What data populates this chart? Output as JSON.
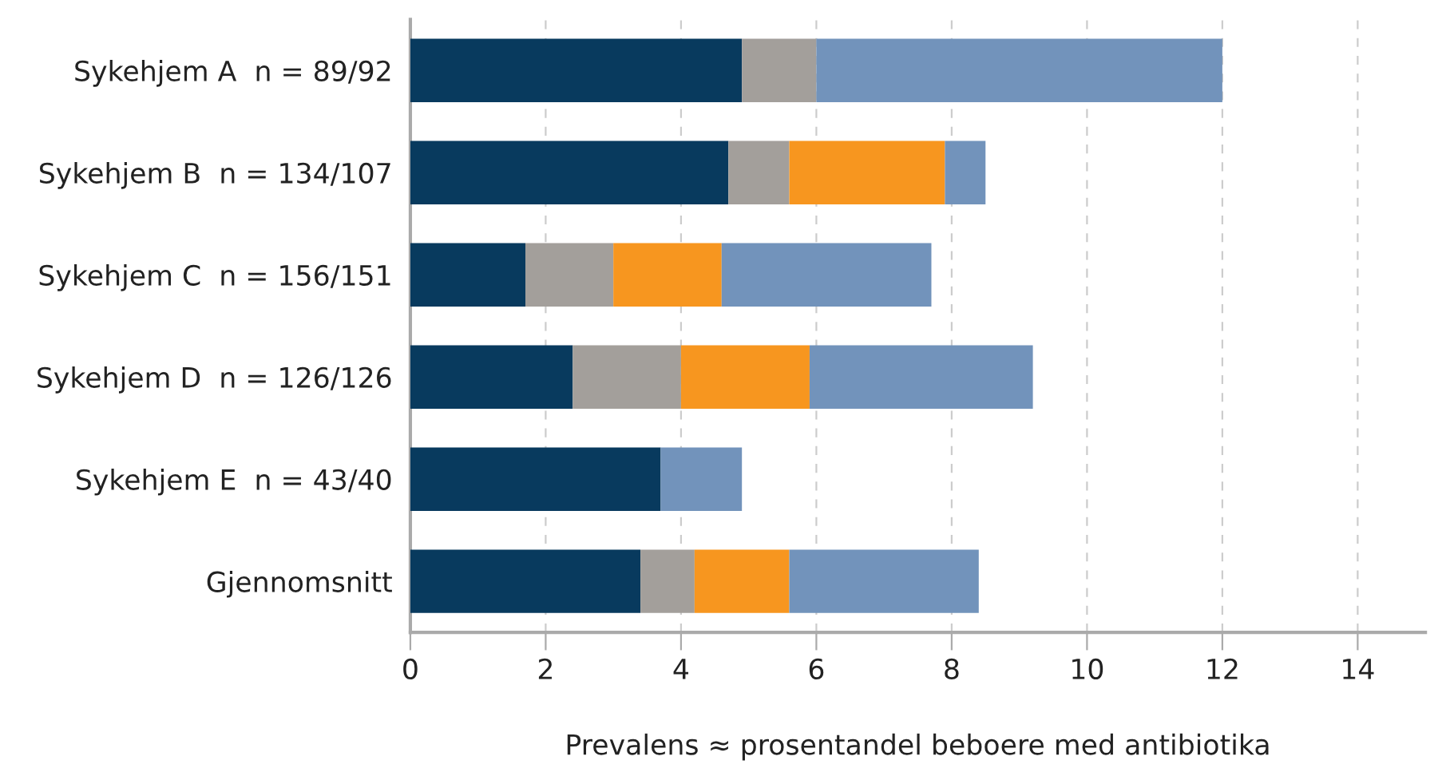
{
  "chart_data": {
    "type": "bar",
    "orientation": "horizontal",
    "stacked": true,
    "xlabel": "Prevalens ≈ prosentandel beboere med antibiotika",
    "categories": [
      "Sykehjem A  n = 89/92",
      "Sykehjem B  n = 134/107",
      "Sykehjem C  n = 156/151",
      "Sykehjem D  n = 126/126",
      "Sykehjem E  n = 43/40",
      "Gjennomsnitt"
    ],
    "series": [
      {
        "color": "#083a5e",
        "values": [
          4.9,
          4.7,
          1.7,
          2.4,
          3.7,
          3.4
        ]
      },
      {
        "color": "#a39f9b",
        "values": [
          1.1,
          0.9,
          1.3,
          1.6,
          null,
          0.8
        ]
      },
      {
        "color": "#f7961f",
        "values": [
          null,
          2.3,
          1.6,
          1.9,
          null,
          1.4
        ]
      },
      {
        "color": "#7293bb",
        "values": [
          6.0,
          0.6,
          3.1,
          3.3,
          1.2,
          2.8
        ]
      }
    ],
    "xlim": [
      0,
      15
    ],
    "xticks": [
      0,
      2,
      4,
      6,
      8,
      10,
      12,
      14
    ],
    "grid": "x",
    "legend": false
  }
}
